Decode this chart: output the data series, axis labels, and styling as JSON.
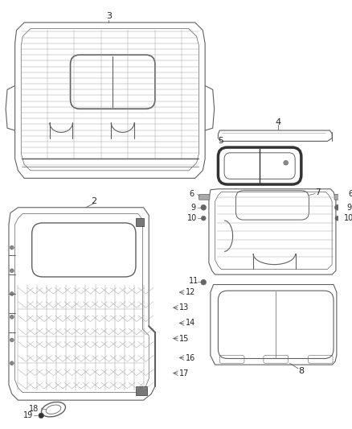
{
  "bg_color": "#ffffff",
  "lc": "#606060",
  "lc_dark": "#333333",
  "lc_light": "#999999",
  "figsize": [
    4.38,
    5.33
  ],
  "dpi": 100
}
